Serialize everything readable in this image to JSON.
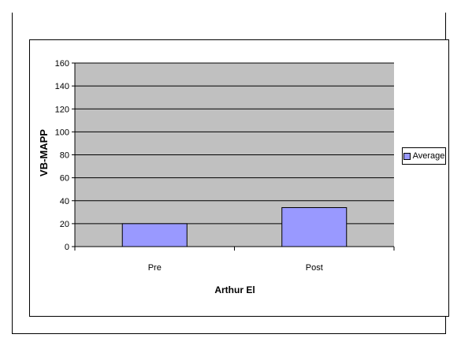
{
  "chart_data": {
    "type": "bar",
    "categories": [
      "Pre",
      "Post"
    ],
    "series": [
      {
        "name": "Average",
        "values": [
          20,
          34
        ],
        "color": "#9999ff"
      }
    ],
    "ylabel": "VB-MAPP",
    "xlabel": "Arthur El",
    "ylim": [
      0,
      160
    ],
    "yticks": [
      0,
      20,
      40,
      60,
      80,
      100,
      120,
      140,
      160
    ],
    "grid": true,
    "legend": "right",
    "plot_background": "#c0c0c0"
  }
}
